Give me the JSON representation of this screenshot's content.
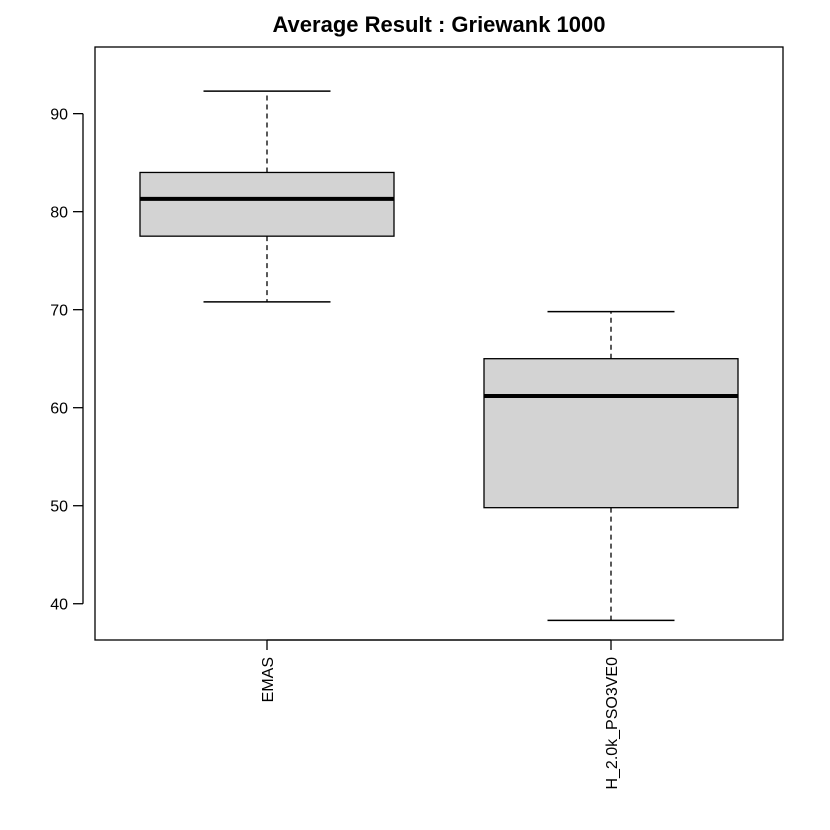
{
  "chart_data": {
    "type": "boxplot",
    "title": "Average Result : Griewank 1000",
    "xlabel": "",
    "ylabel": "",
    "ylim": [
      36.3,
      96.8
    ],
    "yticks": [
      40,
      50,
      60,
      70,
      80,
      90
    ],
    "ytick_labels": [
      "40",
      "50",
      "60",
      "70",
      "80",
      "90"
    ],
    "categories": [
      "EMAS",
      "H_2.0k_PSO3VE0"
    ],
    "boxes": [
      {
        "name": "EMAS",
        "min": 70.8,
        "q1": 77.5,
        "median": 81.3,
        "q3": 84.0,
        "max": 92.3
      },
      {
        "name": "H_2.0k_PSO3VE0",
        "min": 38.3,
        "q1": 49.8,
        "median": 61.2,
        "q3": 65.0,
        "max": 69.8
      }
    ],
    "box_fill": "#d3d3d3",
    "line_color": "#000000",
    "grid": false,
    "legend": "none"
  }
}
